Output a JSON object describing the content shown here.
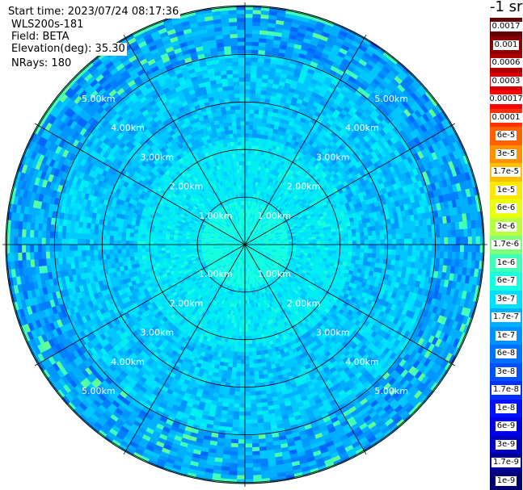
{
  "header": {
    "start_time": "Start time: 2023/07/24 08:17:36",
    "instrument": "WLS200s-181",
    "field": "Field: BETA",
    "elevation": "Elevation(deg): 35.30",
    "nrays": "NRays: 180"
  },
  "colorbar": {
    "unit": "-1 sr",
    "levels": [
      {
        "label": "0.0017",
        "color": "#650000"
      },
      {
        "label": "0.001",
        "color": "#8b0000"
      },
      {
        "label": "0.0006",
        "color": "#b00000"
      },
      {
        "label": "0.0003",
        "color": "#d80000"
      },
      {
        "label": "0.00017",
        "color": "#ff0000"
      },
      {
        "label": "0.0001",
        "color": "#ff3000"
      },
      {
        "label": "6e-5",
        "color": "#ff6000"
      },
      {
        "label": "3e-5",
        "color": "#ff9000"
      },
      {
        "label": "1.7e-5",
        "color": "#ffc000"
      },
      {
        "label": "1e-5",
        "color": "#ffe800"
      },
      {
        "label": "6e-6",
        "color": "#e8ff10"
      },
      {
        "label": "3e-6",
        "color": "#b8ff40"
      },
      {
        "label": "1.7e-6",
        "color": "#80ff78"
      },
      {
        "label": "1e-6",
        "color": "#40ffb8"
      },
      {
        "label": "6e-7",
        "color": "#18ffe0"
      },
      {
        "label": "3e-7",
        "color": "#00e0ff"
      },
      {
        "label": "1.7e-7",
        "color": "#00b0ff"
      },
      {
        "label": "1e-7",
        "color": "#0090ff"
      },
      {
        "label": "6e-8",
        "color": "#0070ff"
      },
      {
        "label": "3e-8",
        "color": "#0050ff"
      },
      {
        "label": "1.7e-8",
        "color": "#0030ff"
      },
      {
        "label": "1e-8",
        "color": "#0010ff"
      },
      {
        "label": "6e-9",
        "color": "#0000e8"
      },
      {
        "label": "3e-9",
        "color": "#0000c0"
      },
      {
        "label": "1.7e-9",
        "color": "#000098"
      },
      {
        "label": "1e-9",
        "color": "#000070"
      }
    ]
  },
  "chart_data": {
    "type": "heatmap",
    "projection": "polar",
    "field": "BETA",
    "unit": "-1 sr",
    "elevation_deg": 35.3,
    "nrays": 180,
    "range_rings": [
      "1.00km",
      "2.00km",
      "3.00km",
      "4.00km",
      "5.00km"
    ],
    "spokes_deg": [
      0,
      30,
      60,
      90,
      120,
      150,
      180,
      210,
      240,
      270,
      300,
      330
    ],
    "range_extent_km": 5.0,
    "value_description_levels": [
      "1e-6",
      "6e-7",
      "3e-7",
      "1.7e-7",
      "1e-7",
      "6e-8",
      "3e-8"
    ]
  }
}
